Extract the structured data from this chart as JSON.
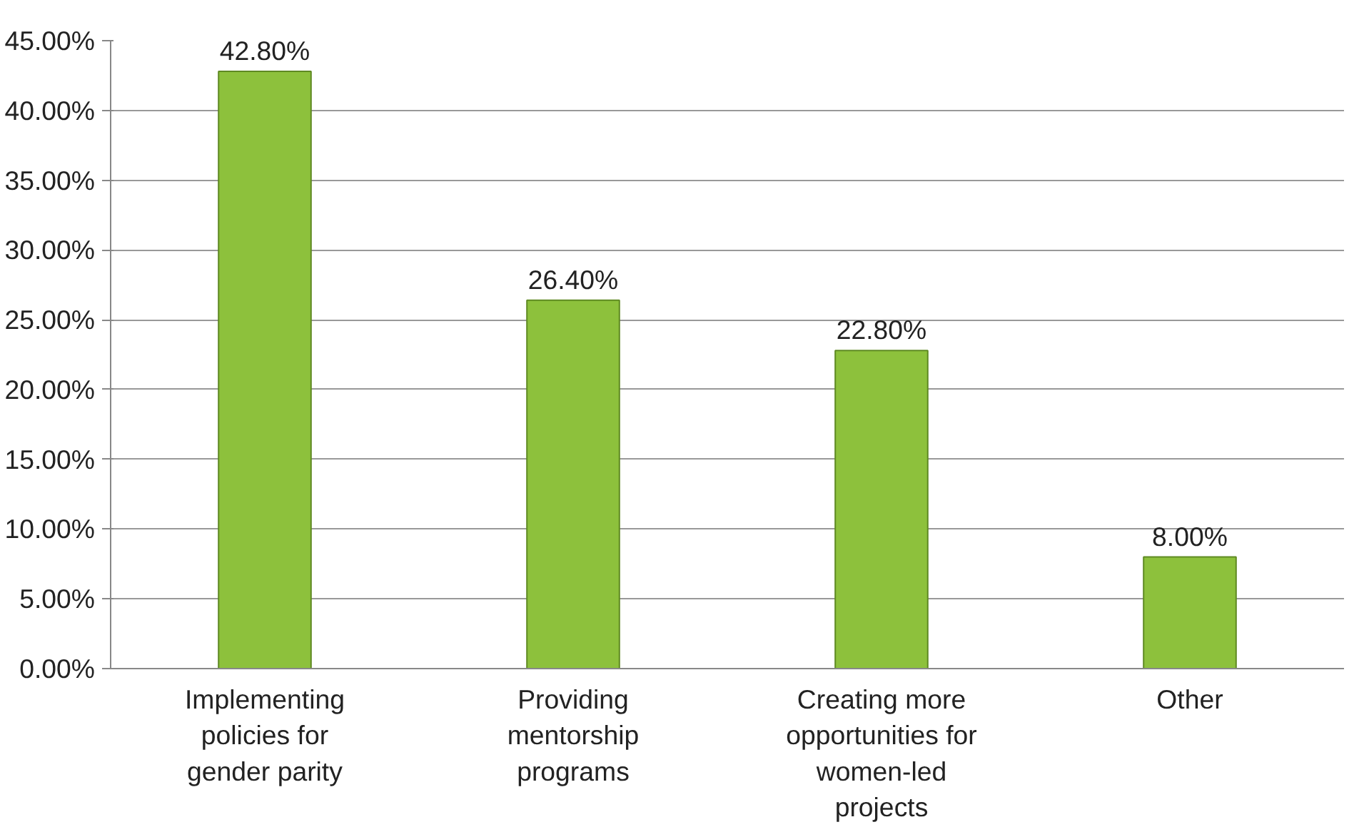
{
  "chart_data": {
    "type": "bar",
    "categories": [
      "Implementing policies for gender parity",
      "Providing mentorship programs",
      "Creating more opportunities for women-led projects",
      "Other"
    ],
    "series": [
      {
        "color": "#8dc13c",
        "values": [
          42.8,
          26.4,
          22.8,
          8.0
        ],
        "value_labels": [
          "42.80%",
          "26.40%",
          "22.80%",
          "8.00%"
        ]
      }
    ],
    "ylim": [
      0,
      45
    ],
    "yticks": [
      {
        "value": 0,
        "label": "0.00%"
      },
      {
        "value": 5,
        "label": "5.00%"
      },
      {
        "value": 10,
        "label": "10.00%"
      },
      {
        "value": 15,
        "label": "15.00%"
      },
      {
        "value": 20,
        "label": "20.00%"
      },
      {
        "value": 25,
        "label": "25.00%"
      },
      {
        "value": 30,
        "label": "30.00%"
      },
      {
        "value": 35,
        "label": "35.00%"
      },
      {
        "value": 40,
        "label": "40.00%"
      },
      {
        "value": 45,
        "label": "45.00%"
      }
    ],
    "grid": "y"
  }
}
